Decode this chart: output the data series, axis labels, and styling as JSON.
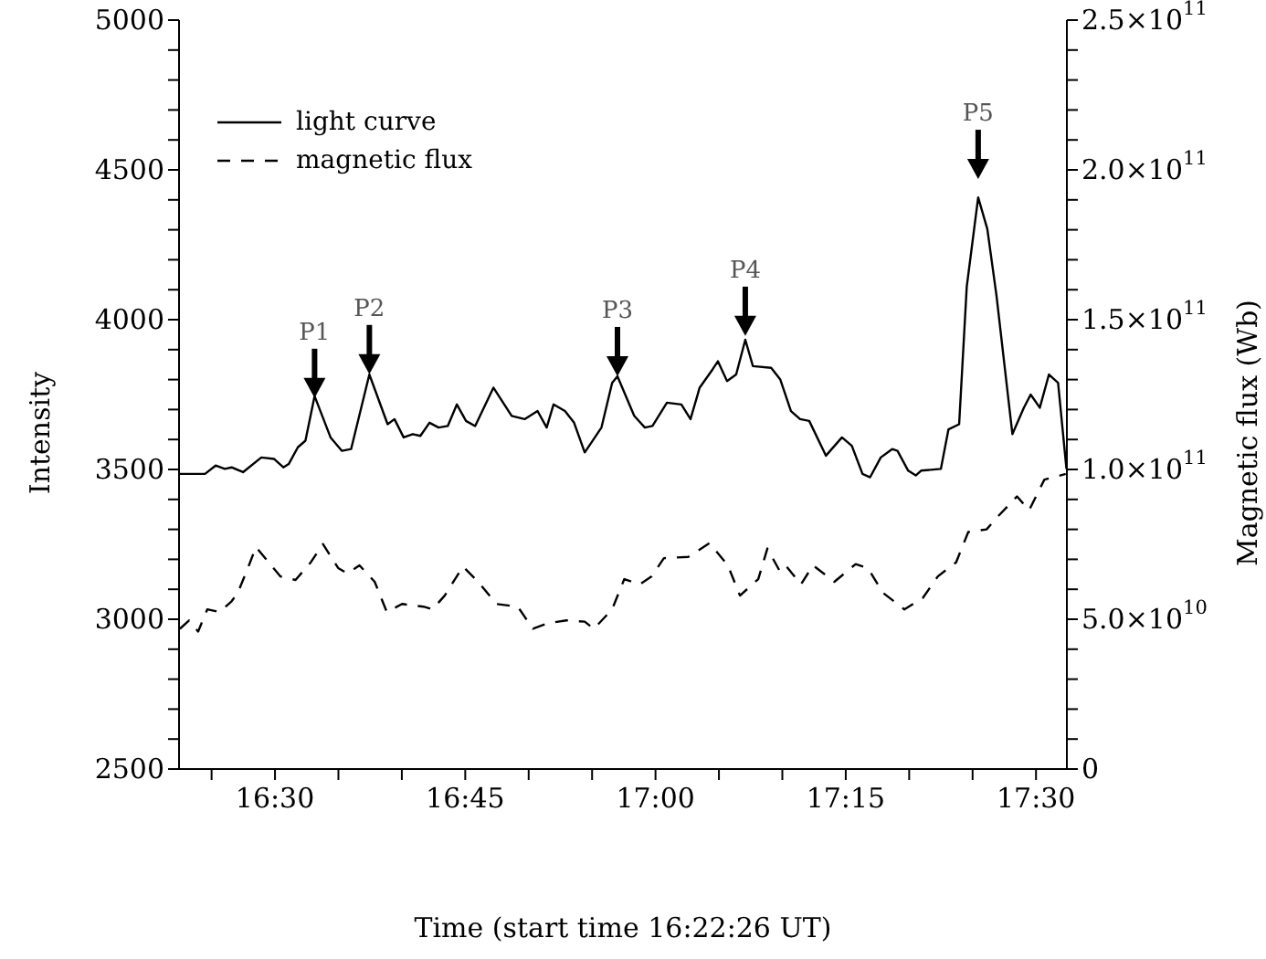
{
  "chart_data": {
    "type": "line",
    "xlabel": "Time (start time 16:22:26 UT)",
    "ylabel": "Intensity",
    "y2label": "Magnetic flux (Wb)",
    "xlim": [
      16.37389,
      17.54056
    ],
    "xticks": [
      {
        "value": 16.41667,
        "label": null
      },
      {
        "value": 16.5,
        "label": "16:30"
      },
      {
        "value": 16.58333,
        "label": null
      },
      {
        "value": 16.66667,
        "label": null
      },
      {
        "value": 16.75,
        "label": "16:45"
      },
      {
        "value": 16.83333,
        "label": null
      },
      {
        "value": 16.91667,
        "label": null
      },
      {
        "value": 17,
        "label": "17:00"
      },
      {
        "value": 17.08333,
        "label": null
      },
      {
        "value": 17.16667,
        "label": null
      },
      {
        "value": 17.25,
        "label": "17:15"
      },
      {
        "value": 17.33333,
        "label": null
      },
      {
        "value": 17.41667,
        "label": null
      },
      {
        "value": 17.5,
        "label": "17:30"
      }
    ],
    "ylim": [
      2500,
      5000
    ],
    "yticks": [
      2500,
      {
        "value": 2600,
        "label": null
      },
      {
        "value": 2700,
        "label": null
      },
      {
        "value": 2800,
        "label": null
      },
      {
        "value": 2900,
        "label": null
      },
      3000,
      {
        "value": 3100,
        "label": null
      },
      {
        "value": 3200,
        "label": null
      },
      {
        "value": 3300,
        "label": null
      },
      {
        "value": 3400,
        "label": null
      },
      3500,
      {
        "value": 3600,
        "label": null
      },
      {
        "value": 3700,
        "label": null
      },
      {
        "value": 3800,
        "label": null
      },
      {
        "value": 3900,
        "label": null
      },
      4000,
      {
        "value": 4100,
        "label": null
      },
      {
        "value": 4200,
        "label": null
      },
      {
        "value": 4300,
        "label": null
      },
      {
        "value": 4400,
        "label": null
      },
      4500,
      {
        "value": 4600,
        "label": null
      },
      {
        "value": 4700,
        "label": null
      },
      {
        "value": 4800,
        "label": null
      },
      {
        "value": 4900,
        "label": null
      },
      5000
    ],
    "y2lim": [
      0,
      250000000000
    ],
    "y2ticks": [
      0,
      {
        "value": 10000000000,
        "label": null
      },
      {
        "value": 20000000000,
        "label": null
      },
      {
        "value": 30000000000,
        "label": null
      },
      {
        "value": 40000000000,
        "label": null
      },
      {
        "value": 50000000000,
        "label": "5.0×10$^{10}$"
      },
      {
        "value": 60000000000,
        "label": null
      },
      {
        "value": 70000000000,
        "label": null
      },
      {
        "value": 80000000000,
        "label": null
      },
      {
        "value": 90000000000,
        "label": null
      },
      {
        "value": 100000000000,
        "label": "1.0×10$^{11}$"
      },
      {
        "value": 110000000000,
        "label": null
      },
      {
        "value": 120000000000,
        "label": null
      },
      {
        "value": 130000000000,
        "label": null
      },
      {
        "value": 140000000000,
        "label": null
      },
      {
        "value": 150000000000,
        "label": "1.5×10$^{11}$"
      },
      {
        "value": 160000000000,
        "label": null
      },
      {
        "value": 170000000000,
        "label": null
      },
      {
        "value": 180000000000,
        "label": null
      },
      {
        "value": 190000000000,
        "label": null
      },
      {
        "value": 200000000000,
        "label": "2.0×10$^{11}$"
      },
      {
        "value": 210000000000,
        "label": null
      },
      {
        "value": 220000000000,
        "label": null
      },
      {
        "value": 230000000000,
        "label": null
      },
      {
        "value": 240000000000,
        "label": null
      },
      {
        "value": 250000000000,
        "label": "2.5×10$^{11}$"
      }
    ],
    "legend": "top left",
    "annotations": [
      {
        "text": "P1",
        "x": 16.552,
        "y": 3745
      },
      {
        "text": "P2",
        "x": 16.624,
        "y": 3817
      },
      {
        "text": "P3",
        "x": 16.95,
        "y": 3811
      },
      {
        "text": "P4",
        "x": 17.118,
        "y": 3933
      },
      {
        "text": "P5",
        "x": 17.424,
        "y": 4408
      }
    ],
    "series": [
      {
        "name": "light curve",
        "color": "#000000",
        "line_style": "solid",
        "x": [
          16.374,
          16.408,
          16.422,
          16.434,
          16.443,
          16.458,
          16.482,
          16.499,
          16.511,
          16.518,
          16.53,
          16.54,
          16.552,
          16.573,
          16.588,
          16.6,
          16.624,
          16.648,
          16.657,
          16.669,
          16.681,
          16.691,
          16.703,
          16.715,
          16.727,
          16.739,
          16.751,
          16.763,
          16.787,
          16.811,
          16.828,
          16.845,
          16.857,
          16.866,
          16.881,
          16.893,
          16.907,
          16.929,
          16.943,
          16.95,
          16.972,
          16.986,
          16.996,
          17.015,
          17.034,
          17.046,
          17.058,
          17.075,
          17.082,
          17.094,
          17.106,
          17.118,
          17.128,
          17.152,
          17.164,
          17.178,
          17.19,
          17.202,
          17.224,
          17.245,
          17.258,
          17.272,
          17.282,
          17.296,
          17.311,
          17.318,
          17.332,
          17.342,
          17.349,
          17.375,
          17.385,
          17.399,
          17.409,
          17.424,
          17.436,
          17.448,
          17.469,
          17.484,
          17.493,
          17.505,
          17.517,
          17.529,
          17.54
        ],
        "values": [
          3485,
          3485,
          3513,
          3502,
          3507,
          3491,
          3540,
          3535,
          3507,
          3518,
          3574,
          3596,
          3745,
          3607,
          3562,
          3568,
          3817,
          3651,
          3668,
          3607,
          3618,
          3612,
          3656,
          3640,
          3645,
          3717,
          3662,
          3645,
          3773,
          3679,
          3668,
          3695,
          3640,
          3717,
          3695,
          3656,
          3557,
          3640,
          3789,
          3811,
          3679,
          3640,
          3645,
          3723,
          3717,
          3668,
          3773,
          3834,
          3861,
          3795,
          3817,
          3933,
          3845,
          3839,
          3800,
          3695,
          3668,
          3662,
          3546,
          3607,
          3579,
          3485,
          3474,
          3540,
          3568,
          3562,
          3496,
          3480,
          3496,
          3502,
          3634,
          3651,
          4110,
          4408,
          4303,
          4082,
          3618,
          3706,
          3750,
          3706,
          3817,
          3789,
          3502
        ]
      },
      {
        "name": "magnetic flux",
        "color": "#000000",
        "line_style": "dashed",
        "axis": "y2",
        "x": [
          16.375,
          16.387,
          16.399,
          16.411,
          16.427,
          16.443,
          16.451,
          16.463,
          16.475,
          16.495,
          16.507,
          16.527,
          16.547,
          16.563,
          16.583,
          16.595,
          16.611,
          16.631,
          16.647,
          16.667,
          16.695,
          16.707,
          16.723,
          16.747,
          16.767,
          16.791,
          16.819,
          16.839,
          16.859,
          16.883,
          16.907,
          16.919,
          16.943,
          16.959,
          16.979,
          16.995,
          17.011,
          17.043,
          17.071,
          17.095,
          17.111,
          17.135,
          17.147,
          17.163,
          17.171,
          17.191,
          17.207,
          17.235,
          17.263,
          17.279,
          17.299,
          17.327,
          17.351,
          17.371,
          17.395,
          17.411,
          17.435,
          17.451,
          17.475,
          17.491,
          17.511,
          17.539
        ],
        "values": [
          46800000000,
          49600000000,
          45900000000,
          53300000000,
          52400000000,
          56000000000,
          58800000000,
          66200000000,
          74100000000,
          68000000000,
          64300000000,
          63100000000,
          69000000000,
          75100000000,
          67100000000,
          65300000000,
          68000000000,
          62500000000,
          52400000000,
          55100000000,
          54200000000,
          53300000000,
          57900000000,
          67600000000,
          62500000000,
          55100000000,
          54200000000,
          46800000000,
          48700000000,
          49600000000,
          49200000000,
          46800000000,
          53300000000,
          63400000000,
          61600000000,
          64300000000,
          70400000000,
          70800000000,
          75400000000,
          68000000000,
          57900000000,
          63400000000,
          73600000000,
          66200000000,
          68000000000,
          61600000000,
          68000000000,
          62500000000,
          68400000000,
          67100000000,
          58800000000,
          53300000000,
          57000000000,
          64300000000,
          69000000000,
          79100000000,
          80000000000,
          84600000000,
          91000000000,
          86400000000,
          96600000000,
          98500000000
        ]
      }
    ]
  }
}
